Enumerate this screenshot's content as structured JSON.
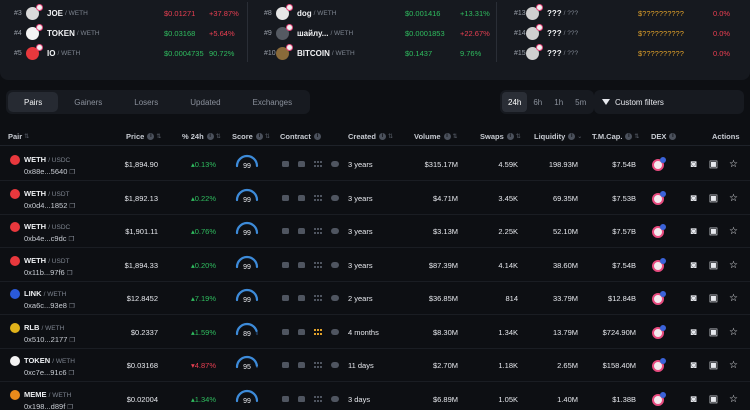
{
  "trending": [
    [
      {
        "rank": "#3",
        "symbol": "JOE",
        "quote": "/ WETH",
        "price": "$0.01271",
        "change": "+37.87%",
        "price_color": "neg",
        "chg_color": "neg",
        "icon_color": "#d9d9d9"
      },
      {
        "rank": "#4",
        "symbol": "TOKEN",
        "quote": "/ WETH",
        "price": "$0.03168",
        "change": "+5.64%",
        "price_color": "pos",
        "chg_color": "neg",
        "icon_color": "#f4f4f4"
      },
      {
        "rank": "#5",
        "symbol": "IO",
        "quote": "/ WETH",
        "price": "$0.0004735",
        "change": "90.72%",
        "price_color": "pos",
        "chg_color": "pos",
        "icon_color": "#e8383d"
      }
    ],
    [
      {
        "rank": "#8",
        "symbol": "dog",
        "quote": "/ WETH",
        "price": "$0.001416",
        "change": "+13.31%",
        "price_color": "pos",
        "chg_color": "pos",
        "icon_color": "#e6e6e6"
      },
      {
        "rank": "#9",
        "symbol": "шайлу...",
        "quote": "/ WETH",
        "price": "$0.0001853",
        "change": "+22.67%",
        "price_color": "pos",
        "chg_color": "neg",
        "icon_color": "#555a62"
      },
      {
        "rank": "#10",
        "symbol": "BITCOIN",
        "quote": "/ WETH",
        "price": "$0.1437",
        "change": "9.76%",
        "price_color": "pos",
        "chg_color": "pos",
        "icon_color": "#8a6a3a"
      }
    ],
    [
      {
        "rank": "#13",
        "symbol": "???",
        "quote": "/ ???",
        "price": "$??????????",
        "change": "0.0%",
        "price_color": "unk",
        "chg_color": "neg",
        "icon_color": "#cfcfcf"
      },
      {
        "rank": "#14",
        "symbol": "???",
        "quote": "/ ???",
        "price": "$??????????",
        "change": "0.0%",
        "price_color": "unk",
        "chg_color": "neg",
        "icon_color": "#cfcfcf"
      },
      {
        "rank": "#15",
        "symbol": "???",
        "quote": "/ ???",
        "price": "$??????????",
        "change": "0.0%",
        "price_color": "unk",
        "chg_color": "neg",
        "icon_color": "#cfcfcf"
      }
    ]
  ],
  "tabs": [
    "Pairs",
    "Gainers",
    "Losers",
    "Updated",
    "Exchanges"
  ],
  "timeframes": [
    "24h",
    "6h",
    "1h",
    "5m"
  ],
  "filter_label": "Custom filters",
  "columns": {
    "pair": "Pair",
    "price": "Price",
    "change": "% 24h",
    "score": "Score",
    "contract": "Contract",
    "created": "Created",
    "volume": "Volume",
    "swaps": "Swaps",
    "liquidity": "Liquidity",
    "mcap": "T.M.Cap.",
    "dex": "DEX",
    "actions": "Actions"
  },
  "rows": [
    {
      "symbol": "WETH",
      "quote": "/ USDC",
      "address": "0x88e...5640",
      "price": "$1,894.90",
      "change": "0.13%",
      "change_dir": "pos",
      "score": "99",
      "score_level": 0.99,
      "created": "3 years",
      "volume": "$315.17M",
      "swaps": "4.59K",
      "liquidity": "198.93M",
      "mcap": "$7.54B",
      "icon_color": "#e8383d"
    },
    {
      "symbol": "WETH",
      "quote": "/ USDT",
      "address": "0x0d4...1852",
      "price": "$1,892.13",
      "change": "0.22%",
      "change_dir": "pos",
      "score": "99",
      "score_level": 0.99,
      "created": "3 years",
      "volume": "$4.71M",
      "swaps": "3.45K",
      "liquidity": "69.35M",
      "mcap": "$7.53B",
      "icon_color": "#e8383d"
    },
    {
      "symbol": "WETH",
      "quote": "/ USDC",
      "address": "0xb4e...c9dc",
      "price": "$1,901.11",
      "change": "0.76%",
      "change_dir": "pos",
      "score": "99",
      "score_level": 0.99,
      "created": "3 years",
      "volume": "$3.13M",
      "swaps": "2.25K",
      "liquidity": "52.10M",
      "mcap": "$7.57B",
      "icon_color": "#e8383d"
    },
    {
      "symbol": "WETH",
      "quote": "/ USDT",
      "address": "0x11b...97f6",
      "price": "$1,894.33",
      "change": "0.20%",
      "change_dir": "pos",
      "score": "99",
      "score_level": 0.99,
      "created": "3 years",
      "volume": "$87.39M",
      "swaps": "4.14K",
      "liquidity": "38.60M",
      "mcap": "$7.54B",
      "icon_color": "#e8383d"
    },
    {
      "symbol": "LINK",
      "quote": "/ WETH",
      "address": "0xa6c...93e8",
      "price": "$12.8452",
      "change": "7.19%",
      "change_dir": "pos",
      "score": "99",
      "score_level": 0.99,
      "created": "2 years",
      "volume": "$36.85M",
      "swaps": "814",
      "liquidity": "33.79M",
      "mcap": "$12.84B",
      "icon_color": "#2a5ada"
    },
    {
      "symbol": "RLB",
      "quote": "/ WETH",
      "address": "0x510...2177",
      "price": "$0.2337",
      "change": "1.59%",
      "change_dir": "pos",
      "score": "89",
      "score_level": 0.89,
      "created": "4 months",
      "volume": "$8.30M",
      "swaps": "1.34K",
      "liquidity": "13.79M",
      "mcap": "$724.90M",
      "icon_color": "#e0b21a",
      "net_highlight": true
    },
    {
      "symbol": "TOKEN",
      "quote": "/ WETH",
      "address": "0xc7e...91c6",
      "price": "$0.03168",
      "change": "4.87%",
      "change_dir": "neg",
      "score": "95",
      "score_level": 0.95,
      "created": "11 days",
      "volume": "$2.70M",
      "swaps": "1.18K",
      "liquidity": "2.65M",
      "mcap": "$158.40M",
      "icon_color": "#f4f4f4"
    },
    {
      "symbol": "MEME",
      "quote": "/ WETH",
      "address": "0x198...d89f",
      "price": "$0.02004",
      "change": "1.34%",
      "change_dir": "pos",
      "score": "99",
      "score_level": 0.99,
      "created": "3 days",
      "volume": "$6.89M",
      "swaps": "1.05K",
      "liquidity": "1.40M",
      "mcap": "$1.38B",
      "icon_color": "#e98a1b"
    }
  ]
}
